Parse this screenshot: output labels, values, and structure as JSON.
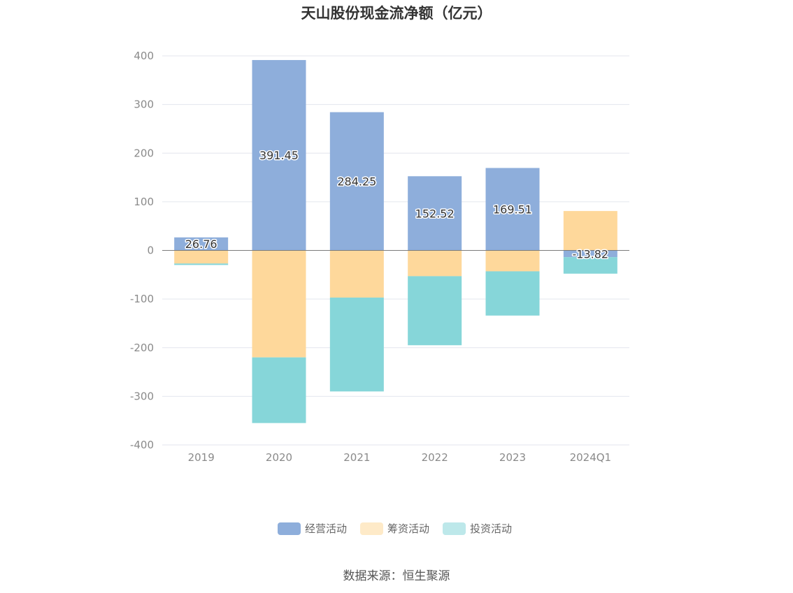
{
  "chart_data": {
    "type": "bar",
    "stacked": true,
    "title": "天山股份现金流净额（亿元）",
    "categories": [
      "2019",
      "2020",
      "2021",
      "2022",
      "2023",
      "2024Q1"
    ],
    "series": [
      {
        "name": "经营活动",
        "color": "#8eaedb",
        "values": [
          26.76,
          391.45,
          284.25,
          152.52,
          169.51,
          -13.82
        ],
        "labels": [
          "26.76",
          "391.45",
          "284.25",
          "152.52",
          "169.51",
          "-13.82"
        ]
      },
      {
        "name": "筹资活动",
        "color": "#fed89b",
        "values": [
          -27,
          -220,
          -97,
          -53,
          -43,
          81
        ]
      },
      {
        "name": "投资活动",
        "color": "#86d6d9",
        "values": [
          -3,
          -135,
          -193,
          -142,
          -91,
          -34
        ]
      }
    ],
    "ylim": [
      -400,
      400
    ],
    "yticks": [
      400,
      300,
      200,
      100,
      0,
      -100,
      -200,
      -300,
      -400
    ],
    "grid": true,
    "legend_position": "bottom",
    "source": "数据来源：恒生聚源"
  }
}
